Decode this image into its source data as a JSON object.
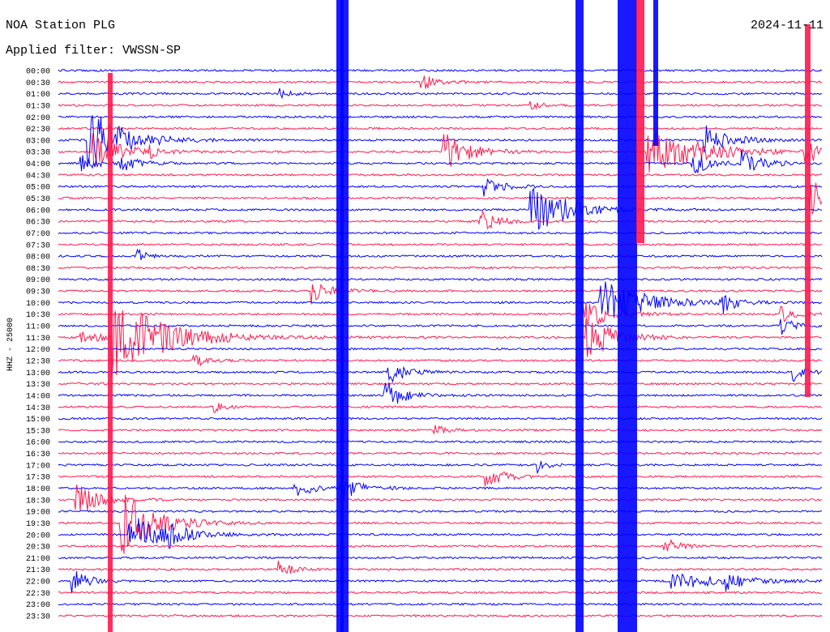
{
  "header": {
    "station": "NOA Station PLG",
    "date": "2024-11-11",
    "filter": "Applied filter: VWSSN-SP"
  },
  "axis_label": "HHZ - 25000",
  "rows": [
    "00:00",
    "00:30",
    "01:00",
    "01:30",
    "02:00",
    "02:30",
    "03:00",
    "03:30",
    "04:00",
    "04:30",
    "05:00",
    "05:30",
    "06:00",
    "06:30",
    "07:00",
    "07:30",
    "08:00",
    "08:30",
    "09:00",
    "09:30",
    "10:00",
    "10:30",
    "11:00",
    "11:30",
    "12:00",
    "12:30",
    "13:00",
    "13:30",
    "14:00",
    "14:30",
    "15:00",
    "15:30",
    "16:00",
    "16:30",
    "17:00",
    "17:30",
    "18:00",
    "18:30",
    "19:00",
    "19:30",
    "20:00",
    "20:30",
    "21:00",
    "21:30",
    "22:00",
    "22:30",
    "23:00",
    "23:30"
  ]
}
